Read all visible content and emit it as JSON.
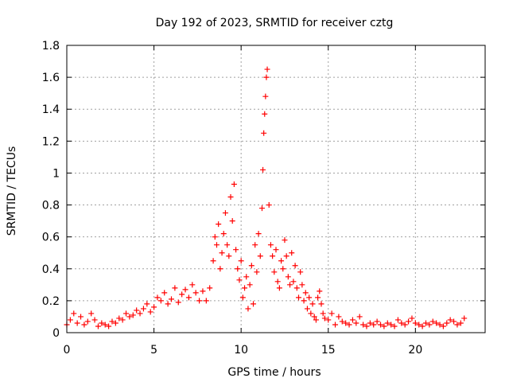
{
  "chart_data": {
    "type": "scatter",
    "title": "Day 192 of 2023, SRMTID for receiver cztg",
    "xlabel": "GPS time / hours",
    "ylabel": "SRMTID / TECUs",
    "xlim": [
      0,
      24
    ],
    "ylim": [
      0,
      1.8
    ],
    "xticks": [
      0,
      5,
      10,
      15,
      20
    ],
    "xtick_labels": [
      "0",
      "5",
      "10",
      "15",
      "20"
    ],
    "yticks": [
      0,
      0.2,
      0.4,
      0.6,
      0.8,
      1,
      1.2,
      1.4,
      1.6,
      1.8
    ],
    "ytick_labels": [
      "0",
      "0.2",
      "0.4",
      "0.6",
      "0.8",
      "1",
      "1.2",
      "1.4",
      "1.6",
      "1.8"
    ],
    "grid": true,
    "marker": "+",
    "series": [
      {
        "name": "SRMTID",
        "color": "#ff0000",
        "x": [
          0.0,
          0.2,
          0.4,
          0.6,
          0.8,
          1.0,
          1.2,
          1.4,
          1.6,
          1.8,
          2.0,
          2.2,
          2.4,
          2.6,
          2.8,
          3.0,
          3.2,
          3.4,
          3.6,
          3.8,
          4.0,
          4.2,
          4.4,
          4.6,
          4.8,
          5.0,
          5.2,
          5.4,
          5.6,
          5.8,
          6.0,
          6.2,
          6.4,
          6.6,
          6.8,
          7.0,
          7.2,
          7.4,
          7.6,
          7.8,
          8.0,
          8.2,
          8.4,
          8.5,
          8.6,
          8.7,
          8.8,
          8.9,
          9.0,
          9.1,
          9.2,
          9.3,
          9.4,
          9.5,
          9.6,
          9.7,
          9.8,
          9.9,
          10.0,
          10.1,
          10.2,
          10.3,
          10.4,
          10.5,
          10.6,
          10.7,
          10.8,
          10.9,
          11.0,
          11.1,
          11.2,
          11.25,
          11.3,
          11.35,
          11.4,
          11.45,
          11.5,
          11.6,
          11.7,
          11.8,
          11.9,
          12.0,
          12.1,
          12.2,
          12.3,
          12.4,
          12.5,
          12.6,
          12.7,
          12.8,
          12.9,
          13.0,
          13.1,
          13.2,
          13.3,
          13.4,
          13.5,
          13.6,
          13.7,
          13.8,
          13.9,
          14.0,
          14.1,
          14.2,
          14.3,
          14.4,
          14.5,
          14.6,
          14.7,
          14.8,
          15.0,
          15.2,
          15.4,
          15.6,
          15.8,
          16.0,
          16.2,
          16.4,
          16.6,
          16.8,
          17.0,
          17.2,
          17.4,
          17.6,
          17.8,
          18.0,
          18.2,
          18.4,
          18.6,
          18.8,
          19.0,
          19.2,
          19.4,
          19.6,
          19.8,
          20.0,
          20.2,
          20.4,
          20.6,
          20.8,
          21.0,
          21.2,
          21.4,
          21.6,
          21.8,
          22.0,
          22.2,
          22.4,
          22.6,
          22.8
        ],
        "y": [
          0.05,
          0.08,
          0.12,
          0.06,
          0.1,
          0.05,
          0.07,
          0.12,
          0.08,
          0.04,
          0.06,
          0.05,
          0.04,
          0.07,
          0.06,
          0.09,
          0.08,
          0.12,
          0.1,
          0.11,
          0.14,
          0.12,
          0.15,
          0.18,
          0.13,
          0.16,
          0.22,
          0.2,
          0.25,
          0.18,
          0.21,
          0.28,
          0.19,
          0.24,
          0.27,
          0.22,
          0.3,
          0.25,
          0.2,
          0.26,
          0.2,
          0.28,
          0.45,
          0.6,
          0.55,
          0.68,
          0.4,
          0.5,
          0.62,
          0.75,
          0.55,
          0.48,
          0.85,
          0.7,
          0.93,
          0.52,
          0.4,
          0.33,
          0.45,
          0.22,
          0.28,
          0.35,
          0.15,
          0.3,
          0.42,
          0.18,
          0.55,
          0.38,
          0.62,
          0.48,
          0.78,
          1.02,
          1.25,
          1.37,
          1.48,
          1.6,
          1.65,
          0.8,
          0.55,
          0.48,
          0.38,
          0.52,
          0.32,
          0.28,
          0.45,
          0.4,
          0.58,
          0.48,
          0.35,
          0.3,
          0.5,
          0.32,
          0.42,
          0.28,
          0.22,
          0.38,
          0.3,
          0.2,
          0.25,
          0.15,
          0.22,
          0.12,
          0.18,
          0.1,
          0.08,
          0.22,
          0.26,
          0.18,
          0.12,
          0.09,
          0.08,
          0.12,
          0.05,
          0.1,
          0.07,
          0.06,
          0.05,
          0.08,
          0.06,
          0.1,
          0.05,
          0.04,
          0.06,
          0.05,
          0.07,
          0.05,
          0.04,
          0.06,
          0.05,
          0.04,
          0.08,
          0.06,
          0.05,
          0.07,
          0.09,
          0.06,
          0.05,
          0.04,
          0.06,
          0.05,
          0.07,
          0.06,
          0.05,
          0.04,
          0.06,
          0.08,
          0.07,
          0.05,
          0.06,
          0.09
        ]
      }
    ]
  }
}
